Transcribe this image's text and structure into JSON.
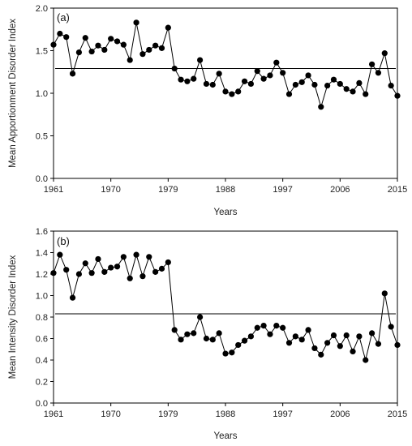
{
  "chart_data": [
    {
      "type": "line",
      "panel_label": "(a)",
      "xlabel": "Years",
      "ylabel": "Mean Apportionment Disorder Index",
      "xlim": [
        1961,
        2015
      ],
      "ylim": [
        0,
        2.0
      ],
      "x_ticks": [
        1961,
        1970,
        1979,
        1988,
        1997,
        2006,
        2015
      ],
      "y_ticks": [
        "0.0",
        "0.5",
        "1.0",
        "1.5",
        "2.0"
      ],
      "mean_line": 1.29,
      "grid": false,
      "marker": "circle",
      "x": [
        1961,
        1962,
        1963,
        1964,
        1965,
        1966,
        1967,
        1968,
        1969,
        1970,
        1971,
        1972,
        1973,
        1974,
        1975,
        1976,
        1977,
        1978,
        1979,
        1980,
        1981,
        1982,
        1983,
        1984,
        1985,
        1986,
        1987,
        1988,
        1989,
        1990,
        1991,
        1992,
        1993,
        1994,
        1995,
        1996,
        1997,
        1998,
        1999,
        2000,
        2001,
        2002,
        2003,
        2004,
        2005,
        2006,
        2007,
        2008,
        2009,
        2010,
        2011,
        2012,
        2013,
        2014,
        2015
      ],
      "values": [
        1.57,
        1.7,
        1.66,
        1.23,
        1.48,
        1.65,
        1.49,
        1.56,
        1.51,
        1.64,
        1.61,
        1.57,
        1.39,
        1.83,
        1.46,
        1.51,
        1.56,
        1.53,
        1.77,
        1.29,
        1.16,
        1.14,
        1.17,
        1.39,
        1.11,
        1.1,
        1.23,
        1.02,
        0.99,
        1.02,
        1.14,
        1.11,
        1.26,
        1.17,
        1.21,
        1.36,
        1.24,
        0.99,
        1.1,
        1.13,
        1.21,
        1.1,
        0.84,
        1.09,
        1.16,
        1.11,
        1.05,
        1.02,
        1.12,
        0.99,
        1.34,
        1.24,
        1.47,
        1.09,
        0.97
      ]
    },
    {
      "type": "line",
      "panel_label": "(b)",
      "xlabel": "Years",
      "ylabel": "Mean Intensity Disorder Index",
      "xlim": [
        1961,
        2015
      ],
      "ylim": [
        0,
        1.6
      ],
      "x_ticks": [
        1961,
        1970,
        1979,
        1988,
        1997,
        2006,
        2015
      ],
      "y_ticks": [
        "0.0",
        "0.2",
        "0.4",
        "0.6",
        "0.8",
        "1.0",
        "1.2",
        "1.4",
        "1.6"
      ],
      "mean_line": 0.83,
      "grid": false,
      "marker": "circle",
      "x": [
        1961,
        1962,
        1963,
        1964,
        1965,
        1966,
        1967,
        1968,
        1969,
        1970,
        1971,
        1972,
        1973,
        1974,
        1975,
        1976,
        1977,
        1978,
        1979,
        1980,
        1981,
        1982,
        1983,
        1984,
        1985,
        1986,
        1987,
        1988,
        1989,
        1990,
        1991,
        1992,
        1993,
        1994,
        1995,
        1996,
        1997,
        1998,
        1999,
        2000,
        2001,
        2002,
        2003,
        2004,
        2005,
        2006,
        2007,
        2008,
        2009,
        2010,
        2011,
        2012,
        2013,
        2014,
        2015
      ],
      "values": [
        1.21,
        1.38,
        1.24,
        0.98,
        1.2,
        1.3,
        1.21,
        1.34,
        1.22,
        1.26,
        1.27,
        1.36,
        1.16,
        1.38,
        1.18,
        1.36,
        1.22,
        1.25,
        1.31,
        0.68,
        0.59,
        0.64,
        0.65,
        0.8,
        0.6,
        0.59,
        0.65,
        0.46,
        0.47,
        0.54,
        0.58,
        0.62,
        0.7,
        0.72,
        0.64,
        0.72,
        0.7,
        0.56,
        0.62,
        0.59,
        0.68,
        0.51,
        0.45,
        0.56,
        0.63,
        0.53,
        0.63,
        0.48,
        0.62,
        0.4,
        0.65,
        0.55,
        1.02,
        0.71,
        0.54
      ]
    }
  ]
}
